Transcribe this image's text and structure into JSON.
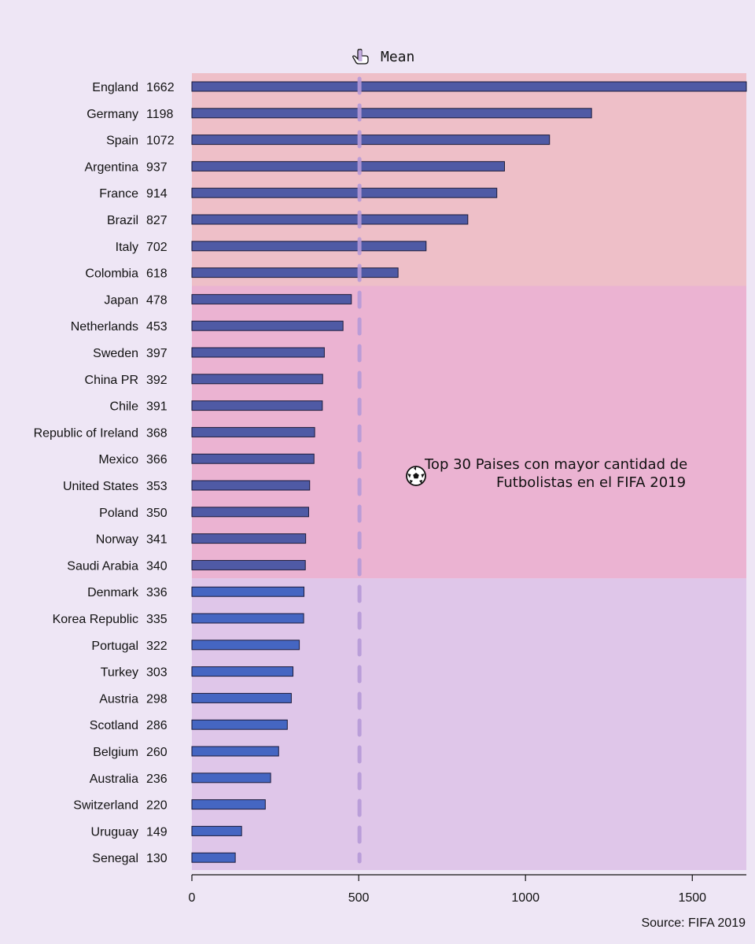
{
  "chart_data": {
    "type": "bar",
    "orientation": "horizontal",
    "title_line1": "Top 30 Paises con mayor cantidad de",
    "title_line2": "Futbolistas en el FIFA 2019",
    "source": "Source: FIFA 2019",
    "mean_label": "Mean",
    "mean_value": 500,
    "xlim": [
      0,
      1662
    ],
    "xticks": [
      0,
      500,
      1000,
      1500
    ],
    "categories": [
      "England",
      "Germany",
      "Spain",
      "Argentina",
      "France",
      "Brazil",
      "Italy",
      "Colombia",
      "Japan",
      "Netherlands",
      "Sweden",
      "China PR",
      "Chile",
      "Republic of Ireland",
      "Mexico",
      "United States",
      "Poland",
      "Norway",
      "Saudi Arabia",
      "Denmark",
      "Korea Republic",
      "Portugal",
      "Turkey",
      "Austria",
      "Scotland",
      "Belgium",
      "Australia",
      "Switzerland",
      "Uruguay",
      "Senegal"
    ],
    "values": [
      1662,
      1198,
      1072,
      937,
      914,
      827,
      702,
      618,
      478,
      453,
      397,
      392,
      391,
      368,
      366,
      353,
      350,
      341,
      340,
      336,
      335,
      322,
      303,
      298,
      286,
      260,
      236,
      220,
      149,
      130
    ],
    "bands": [
      {
        "from": 0,
        "to": 8,
        "color": "#EEBFC8"
      },
      {
        "from": 8,
        "to": 19,
        "color": "#EBB3D2"
      },
      {
        "from": 19,
        "to": 30,
        "color": "#DFC6E9"
      }
    ],
    "bar_colors": {
      "top": "#4F5AA5",
      "bottom": "#4566C2"
    },
    "mean_color": "#B69AD8",
    "grid": false
  }
}
